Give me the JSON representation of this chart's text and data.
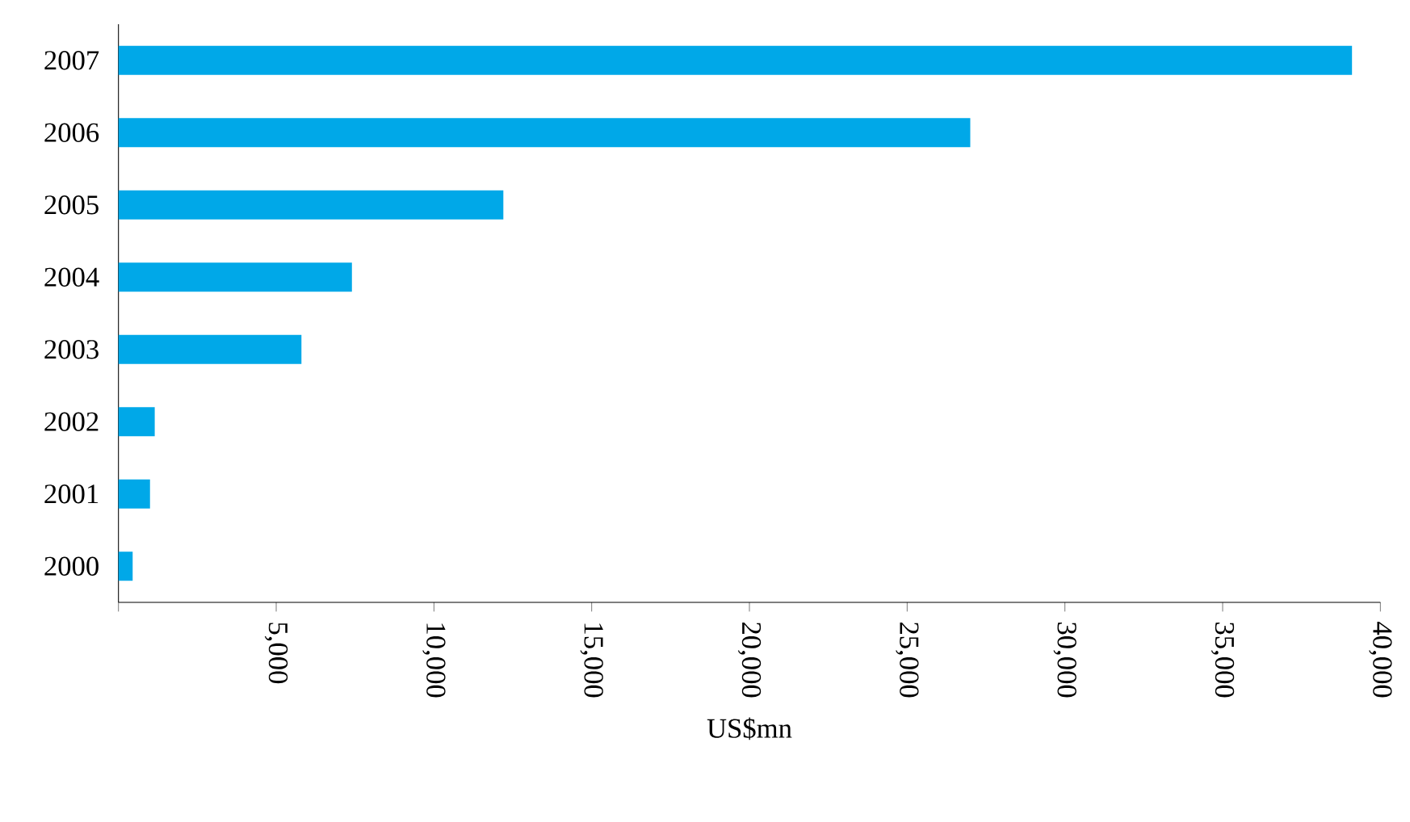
{
  "chart_data": {
    "type": "bar",
    "orientation": "horizontal",
    "xlabel": "US$mn",
    "categories": [
      "2007",
      "2006",
      "2005",
      "2004",
      "2003",
      "2002",
      "2001",
      "2000"
    ],
    "values": [
      39100,
      27000,
      12200,
      7400,
      5800,
      1150,
      1000,
      450
    ],
    "color": "#00a8e8",
    "xlim": [
      0,
      40000
    ],
    "xticks": [
      {
        "value": 0,
        "label": null
      },
      {
        "value": 5000,
        "label": "5,000"
      },
      {
        "value": 10000,
        "label": "10,000"
      },
      {
        "value": 15000,
        "label": "15,000"
      },
      {
        "value": 20000,
        "label": "20,000"
      },
      {
        "value": 25000,
        "label": "25,000"
      },
      {
        "value": 30000,
        "label": "30,000"
      },
      {
        "value": 35000,
        "label": "35,000"
      },
      {
        "value": 40000,
        "label": "40,000"
      }
    ],
    "grid": false
  }
}
